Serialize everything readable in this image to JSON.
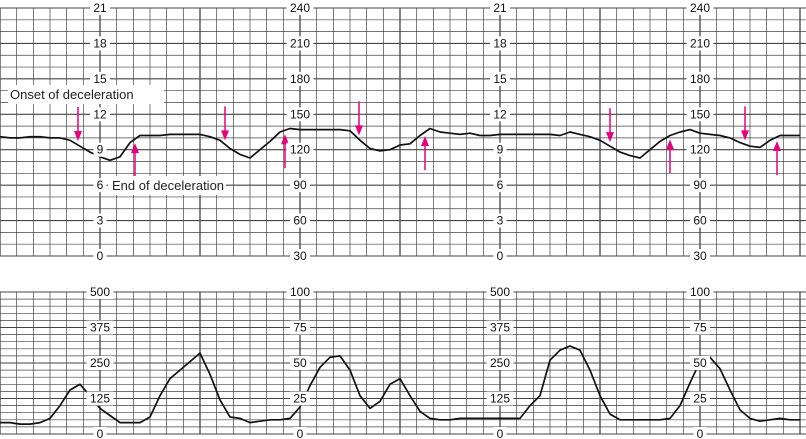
{
  "chart_data": [
    {
      "type": "line",
      "panel": "fetal-heart-rate",
      "left_scale_ticks": [
        "0",
        "3",
        "6",
        "9",
        "12",
        "15",
        "18",
        "21"
      ],
      "right_scale_ticks": [
        "30",
        "60",
        "90",
        "120",
        "150",
        "180",
        "210",
        "240"
      ],
      "ylim": [
        30,
        240
      ],
      "grid": true,
      "line_color": "#111111",
      "values": [
        131,
        130,
        130,
        131,
        131,
        130,
        130,
        128,
        123,
        118,
        114,
        111,
        114,
        126,
        132,
        132,
        132,
        133,
        133,
        133,
        133,
        131,
        128,
        121,
        116,
        113,
        120,
        127,
        135,
        138,
        137,
        137,
        137,
        137,
        137,
        136,
        128,
        121,
        119,
        120,
        124,
        125,
        132,
        138,
        135,
        134,
        133,
        134,
        132,
        132,
        133,
        133,
        133,
        133,
        133,
        133,
        132,
        135,
        133,
        131,
        128,
        123,
        118,
        115,
        113,
        120,
        127,
        132,
        135,
        137,
        134,
        133,
        132,
        130,
        126,
        123,
        122,
        128,
        132,
        132,
        132
      ],
      "onset_markers": [
        7.8,
        22.5,
        35.9,
        61,
        74.5
      ],
      "end_markers": [
        13.5,
        28.5,
        42.5,
        67,
        77.7
      ],
      "marker_color": "#e6007e",
      "annotations": {
        "onset": "Onset of deceleration",
        "end": "End of deceleration"
      }
    },
    {
      "type": "line",
      "panel": "uterine-contractions",
      "left_scale_ticks": [
        "0",
        "125",
        "250",
        "375",
        "500"
      ],
      "right_scale_ticks": [
        "0",
        "25",
        "50",
        "75",
        "100"
      ],
      "ylim": [
        0,
        100
      ],
      "grid": true,
      "line_color": "#111111",
      "values": [
        8,
        8,
        7,
        7,
        8,
        11,
        20,
        31,
        35,
        27,
        18,
        13,
        8,
        8,
        8,
        12,
        27,
        39,
        45,
        51,
        57,
        42,
        24,
        12,
        11,
        8,
        9,
        10,
        10,
        11,
        19,
        34,
        47,
        54,
        55,
        45,
        27,
        18,
        23,
        35,
        39,
        27,
        16,
        11,
        10,
        10,
        11,
        11,
        11,
        11,
        11,
        11,
        11,
        20,
        27,
        52,
        59,
        62,
        59,
        45,
        27,
        14,
        10,
        10,
        10,
        10,
        10,
        11,
        20,
        36,
        51,
        54,
        46,
        31,
        17,
        11,
        9,
        10,
        11,
        10,
        10
      ]
    }
  ]
}
